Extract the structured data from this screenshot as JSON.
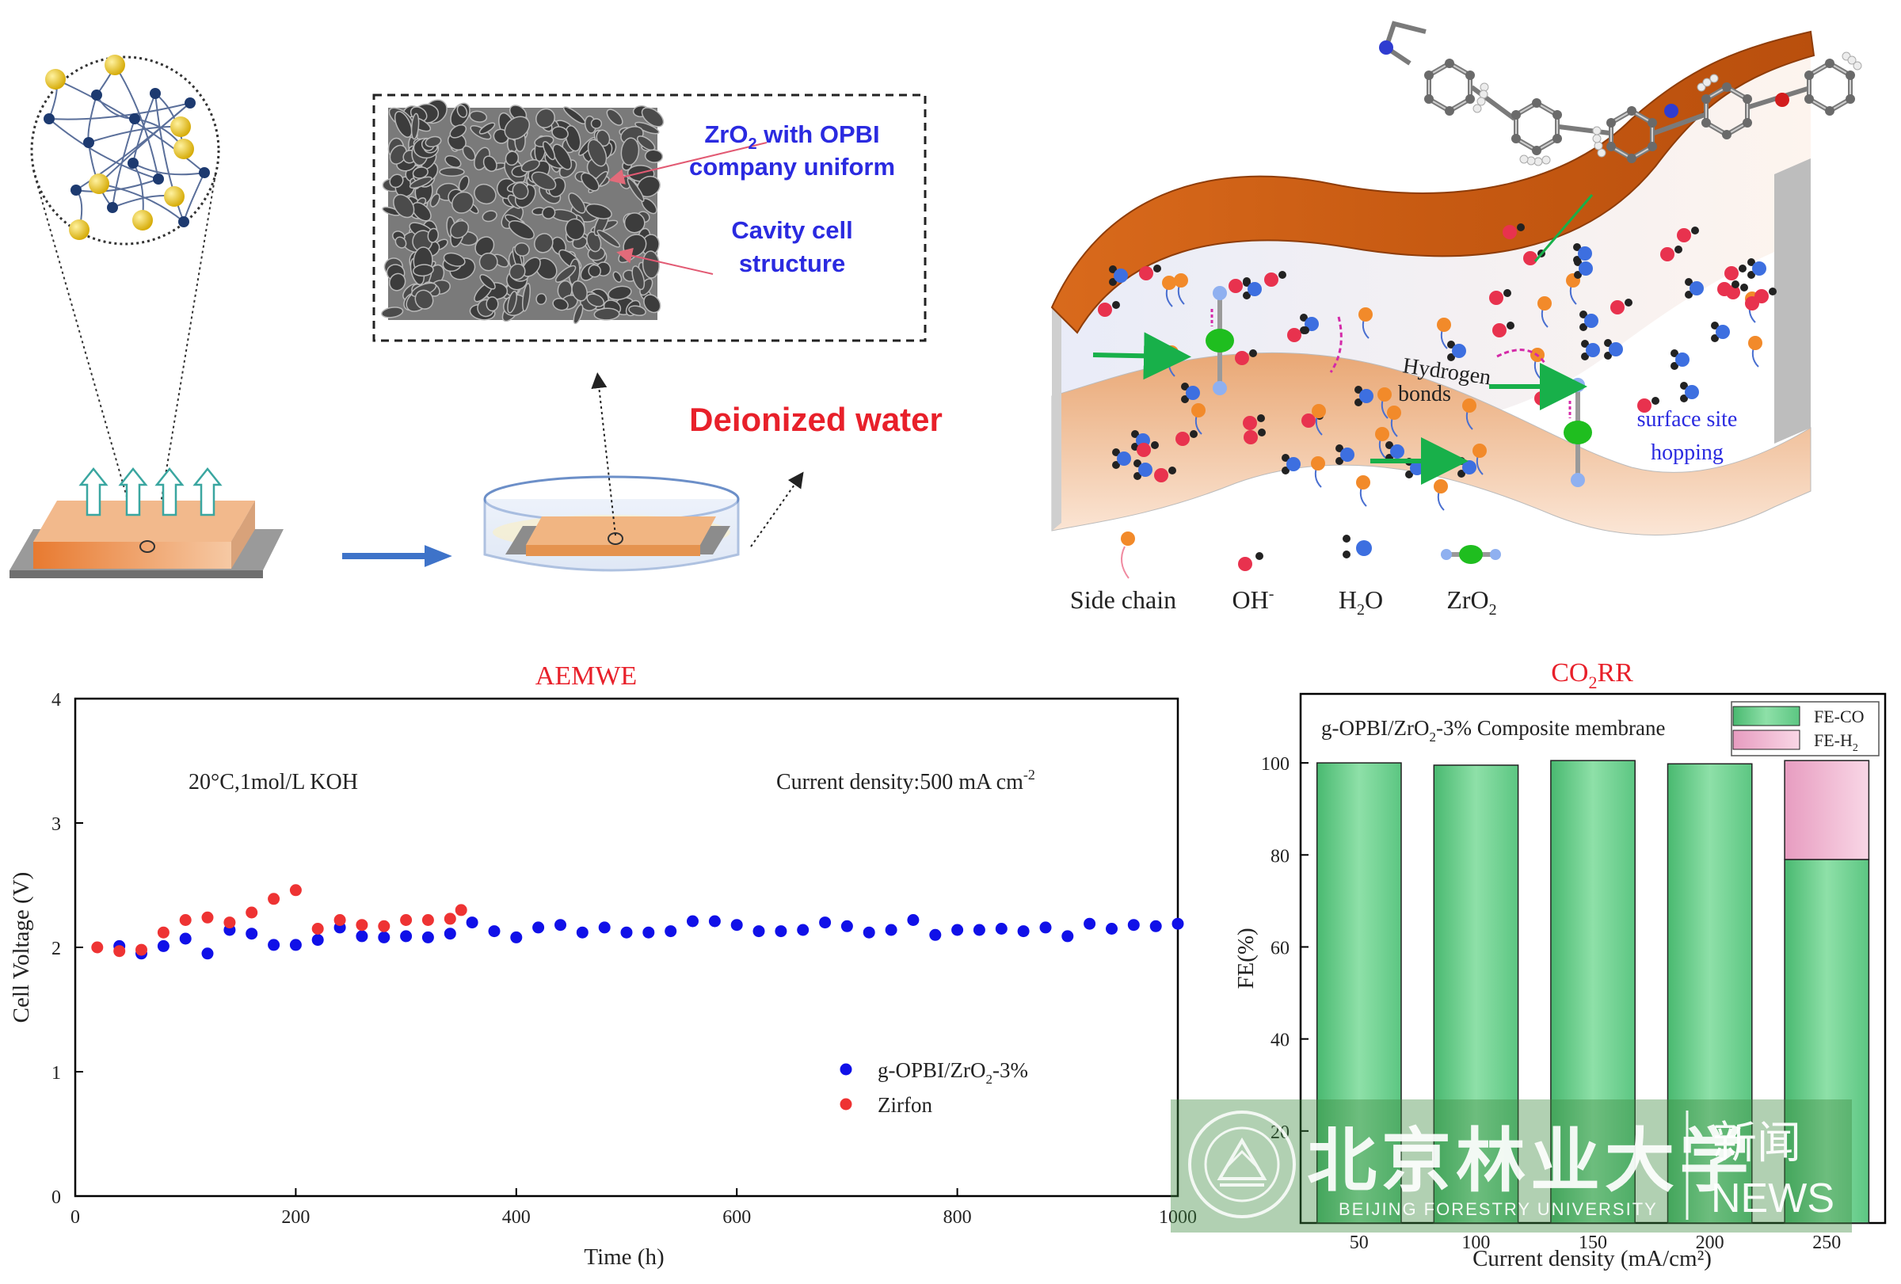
{
  "schematic": {
    "sem_label_1a": "ZrO",
    "sem_label_1sub": "2",
    "sem_label_1b": " with OPBI",
    "sem_label_2": "company uniform",
    "sem_label_3": "Cavity cell",
    "sem_label_4": "structure",
    "deionized_water": "Deionized water",
    "hydrogen_1": "Hydrogen",
    "hydrogen_2": "bonds",
    "surface_1": "surface site",
    "surface_2": "hopping"
  },
  "legend_top": {
    "side_chain": "Side chain",
    "oh_a": "OH",
    "oh_sup": "-",
    "h2o_a": "H",
    "h2o_sub": "2",
    "h2o_b": "O",
    "zro2_a": "ZrO",
    "zro2_sub": "2"
  },
  "watermark": {
    "cn_name": "北京林业大学",
    "news_cn": "新闻",
    "news_en": "NEWS",
    "en_name": "BEIJING FORESTRY UNIVERSITY"
  },
  "colors": {
    "blue_series": "#1010e8",
    "red_series": "#ee3333",
    "fe_co": "#66cc88",
    "fe_h2": "#f0b8d0",
    "title_red": "#e8202a",
    "label_blue": "#2a2ae0"
  },
  "chart_data": [
    {
      "type": "scatter",
      "title": "AEMWE",
      "xlabel": "Time (h)",
      "ylabel": "Cell Voltage (V)",
      "xlim": [
        0,
        1000
      ],
      "ylim": [
        0,
        4
      ],
      "xticks": [
        0,
        200,
        400,
        600,
        800,
        1000
      ],
      "yticks": [
        0,
        1,
        2,
        3,
        4
      ],
      "annotation_left": "20°C,1mol/L KOH",
      "annotation_right_a": "Current density:500 mA cm",
      "annotation_right_sup": "-2",
      "legend_1a": "g-OPBI/ZrO",
      "legend_1sub": "2",
      "legend_1b": "-3%",
      "legend_2": "Zirfon",
      "series": [
        {
          "name": "g-OPBI/ZrO2-3%",
          "x": [
            40,
            60,
            80,
            100,
            120,
            140,
            160,
            180,
            200,
            220,
            240,
            260,
            280,
            300,
            320,
            340,
            360,
            380,
            400,
            420,
            440,
            460,
            480,
            500,
            520,
            540,
            560,
            580,
            600,
            620,
            640,
            660,
            680,
            700,
            720,
            740,
            760,
            780,
            800,
            820,
            840,
            860,
            880,
            900,
            920,
            940,
            960,
            980,
            1000
          ],
          "y": [
            2.01,
            1.95,
            2.01,
            2.07,
            1.95,
            2.14,
            2.11,
            2.02,
            2.02,
            2.06,
            2.16,
            2.09,
            2.08,
            2.09,
            2.08,
            2.11,
            2.2,
            2.13,
            2.08,
            2.16,
            2.18,
            2.12,
            2.16,
            2.12,
            2.12,
            2.13,
            2.21,
            2.21,
            2.18,
            2.13,
            2.13,
            2.14,
            2.2,
            2.17,
            2.12,
            2.14,
            2.22,
            2.1,
            2.14,
            2.14,
            2.15,
            2.13,
            2.16,
            2.09,
            2.19,
            2.15,
            2.18,
            2.17,
            2.19
          ]
        },
        {
          "name": "Zirfon",
          "x": [
            20,
            40,
            60,
            80,
            100,
            120,
            140,
            160,
            180,
            200,
            220,
            240,
            260,
            280,
            300,
            320,
            340,
            350
          ],
          "y": [
            2.0,
            1.97,
            1.98,
            2.12,
            2.22,
            2.24,
            2.2,
            2.28,
            2.39,
            2.46,
            2.15,
            2.22,
            2.18,
            2.17,
            2.22,
            2.22,
            2.23,
            2.3
          ]
        }
      ]
    },
    {
      "type": "bar",
      "title_a": "CO",
      "title_sub": "2",
      "title_b": "RR",
      "subtitle_a": "g-OPBI/ZrO",
      "subtitle_sub": "2",
      "subtitle_b": "-3% Composite membrane",
      "xlabel": "Current density (mA/cm²)",
      "ylabel": "FE(%)",
      "ylim": [
        0,
        115
      ],
      "yticks": [
        20,
        40,
        60,
        80,
        100
      ],
      "categories": [
        "50",
        "100",
        "150",
        "200",
        "250"
      ],
      "series": [
        {
          "name": "FE-CO",
          "values": [
            100,
            99.5,
            100.5,
            99.8,
            79
          ]
        },
        {
          "name": "FE-H2",
          "values": [
            0,
            0,
            0,
            0,
            21.5
          ]
        }
      ],
      "legend_1": "FE-CO",
      "legend_2a": "FE-H",
      "legend_2sub": "2"
    }
  ]
}
